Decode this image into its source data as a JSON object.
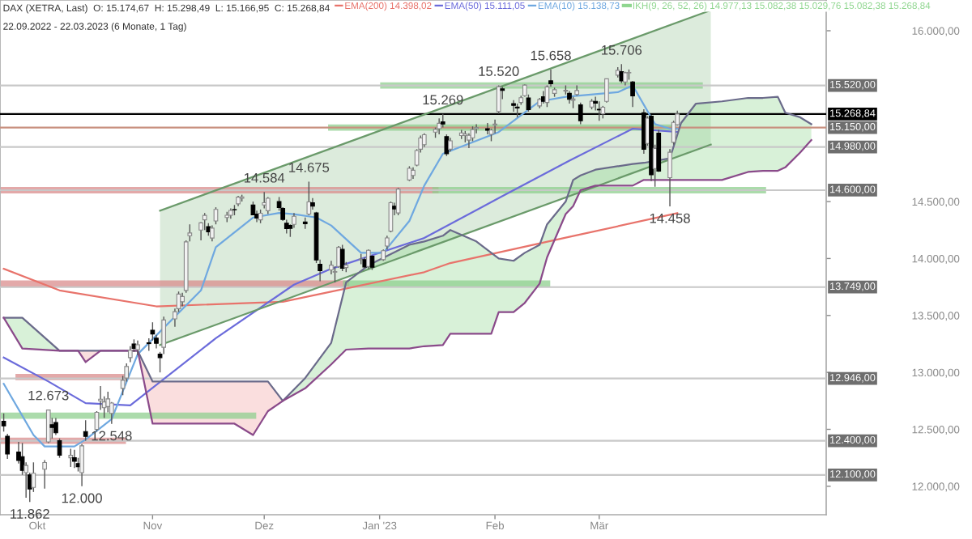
{
  "chart_data": {
    "type": "candlestick",
    "title": "DAX (XETRA, Last)  O: 15.174,67  H: 15.298,49  L: 15.166,95  C: 15.268,84",
    "subtitle": "22.09.2022 - 22.03.2023 (6 Monate, 1 Tag)",
    "x": [
      "2022-09-22",
      "2022-09-23",
      "2022-09-26",
      "2022-09-27",
      "2022-09-28",
      "2022-09-29",
      "2022-09-30",
      "2022-10-03",
      "2022-10-04",
      "2022-10-05",
      "2022-10-06",
      "2022-10-07",
      "2022-10-10",
      "2022-10-11",
      "2022-10-12",
      "2022-10-13",
      "2022-10-14",
      "2022-10-17",
      "2022-10-18",
      "2022-10-19",
      "2022-10-20",
      "2022-10-21",
      "2022-10-24",
      "2022-10-25",
      "2022-10-26",
      "2022-10-27",
      "2022-10-28",
      "2022-10-31",
      "2022-11-01",
      "2022-11-02",
      "2022-11-03",
      "2022-11-04",
      "2022-11-07",
      "2022-11-08",
      "2022-11-09",
      "2022-11-10",
      "2022-11-11",
      "2022-11-14",
      "2022-11-15",
      "2022-11-16",
      "2022-11-17",
      "2022-11-18",
      "2022-11-21",
      "2022-11-22",
      "2022-11-23",
      "2022-11-24",
      "2022-11-25",
      "2022-11-28",
      "2022-11-29",
      "2022-11-30",
      "2022-12-01",
      "2022-12-02",
      "2022-12-05",
      "2022-12-06",
      "2022-12-07",
      "2022-12-08",
      "2022-12-09",
      "2022-12-12",
      "2022-12-13",
      "2022-12-14",
      "2022-12-15",
      "2022-12-16",
      "2022-12-19",
      "2022-12-20",
      "2022-12-21",
      "2022-12-22",
      "2022-12-23",
      "2022-12-27",
      "2022-12-28",
      "2022-12-29",
      "2022-12-30",
      "2023-01-02",
      "2023-01-03",
      "2023-01-04",
      "2023-01-05",
      "2023-01-06",
      "2023-01-09",
      "2023-01-10",
      "2023-01-11",
      "2023-01-12",
      "2023-01-13",
      "2023-01-16",
      "2023-01-17",
      "2023-01-18",
      "2023-01-19",
      "2023-01-20",
      "2023-01-23",
      "2023-01-24",
      "2023-01-25",
      "2023-01-26",
      "2023-01-27",
      "2023-01-30",
      "2023-01-31",
      "2023-02-01",
      "2023-02-02",
      "2023-02-03",
      "2023-02-06",
      "2023-02-07",
      "2023-02-08",
      "2023-02-09",
      "2023-02-10",
      "2023-02-13",
      "2023-02-14",
      "2023-02-15",
      "2023-02-16",
      "2023-02-17",
      "2023-02-20",
      "2023-02-21",
      "2023-02-22",
      "2023-02-23",
      "2023-02-24",
      "2023-02-27",
      "2023-02-28",
      "2023-03-01",
      "2023-03-02",
      "2023-03-03",
      "2023-03-06",
      "2023-03-07",
      "2023-03-08",
      "2023-03-09",
      "2023-03-10",
      "2023-03-13",
      "2023-03-14",
      "2023-03-15",
      "2023-03-16",
      "2023-03-17",
      "2023-03-20",
      "2023-03-21",
      "2023-03-22"
    ],
    "ohlc": [
      [
        12570,
        12640,
        12480,
        12531
      ],
      [
        12440,
        12460,
        12240,
        12284
      ],
      [
        12300,
        12390,
        12200,
        12227
      ],
      [
        12260,
        12380,
        12100,
        12139
      ],
      [
        12120,
        12210,
        11900,
        12183
      ],
      [
        12100,
        12120,
        11862,
        11976
      ],
      [
        11990,
        12210,
        11950,
        12114
      ],
      [
        12150,
        12230,
        11980,
        12209
      ],
      [
        12390,
        12673,
        12380,
        12670
      ],
      [
        12540,
        12600,
        12420,
        12517
      ],
      [
        12560,
        12600,
        12450,
        12470
      ],
      [
        12400,
        12420,
        12250,
        12273
      ],
      [
        12250,
        12330,
        12170,
        12272
      ],
      [
        12250,
        12320,
        12160,
        12219
      ],
      [
        12200,
        12250,
        12130,
        12172
      ],
      [
        12120,
        12370,
        12000,
        12355
      ],
      [
        12480,
        12580,
        12400,
        12438
      ],
      [
        12500,
        12660,
        12480,
        12649
      ],
      [
        12750,
        12880,
        12670,
        12765
      ],
      [
        12690,
        12790,
        12600,
        12741
      ],
      [
        12700,
        12830,
        12650,
        12767
      ],
      [
        12640,
        12740,
        12548,
        12731
      ],
      [
        12860,
        12970,
        12800,
        12931
      ],
      [
        12950,
        13080,
        12920,
        13052
      ],
      [
        13130,
        13230,
        13090,
        13195
      ],
      [
        13250,
        13290,
        13180,
        13211
      ],
      [
        13200,
        13280,
        13150,
        13243
      ],
      [
        13260,
        13300,
        13190,
        13253
      ],
      [
        13370,
        13440,
        13280,
        13338
      ],
      [
        13300,
        13330,
        13210,
        13256
      ],
      [
        13160,
        13180,
        13000,
        13130
      ],
      [
        13220,
        13490,
        13160,
        13460
      ],
      [
        13470,
        13560,
        13400,
        13533
      ],
      [
        13560,
        13710,
        13530,
        13688
      ],
      [
        13620,
        13700,
        13580,
        13666
      ],
      [
        13720,
        14160,
        13700,
        14146
      ],
      [
        14200,
        14300,
        14150,
        14224
      ],
      [
        14250,
        14320,
        14160,
        14313
      ],
      [
        14340,
        14400,
        14250,
        14379
      ],
      [
        14280,
        14310,
        14200,
        14234
      ],
      [
        14180,
        14290,
        14150,
        14267
      ],
      [
        14330,
        14450,
        14300,
        14431
      ],
      [
        14360,
        14410,
        14320,
        14380
      ],
      [
        14380,
        14440,
        14350,
        14422
      ],
      [
        14430,
        14470,
        14380,
        14428
      ],
      [
        14480,
        14550,
        14460,
        14539
      ],
      [
        14530,
        14560,
        14500,
        14541
      ],
      [
        14470,
        14500,
        14380,
        14383
      ],
      [
        14390,
        14420,
        14320,
        14355
      ],
      [
        14340,
        14430,
        14310,
        14397
      ],
      [
        14470,
        14584,
        14440,
        14490
      ],
      [
        14420,
        14540,
        14390,
        14529
      ],
      [
        14500,
        14540,
        14420,
        14448
      ],
      [
        14440,
        14450,
        14330,
        14343
      ],
      [
        14310,
        14340,
        14220,
        14262
      ],
      [
        14290,
        14300,
        14190,
        14265
      ],
      [
        14300,
        14400,
        14270,
        14371
      ],
      [
        14320,
        14360,
        14260,
        14306
      ],
      [
        14390,
        14675,
        14380,
        14497
      ],
      [
        14490,
        14530,
        14430,
        14460
      ],
      [
        14400,
        14410,
        13960,
        13987
      ],
      [
        13950,
        13990,
        13800,
        13894
      ],
      [
        13900,
        13980,
        13860,
        13942
      ],
      [
        13880,
        13930,
        13790,
        13885
      ],
      [
        13930,
        14110,
        13920,
        14098
      ],
      [
        14080,
        14120,
        13890,
        13914
      ],
      [
        13920,
        13970,
        13880,
        13941
      ],
      [
        13990,
        14040,
        13950,
        13995
      ],
      [
        13990,
        14010,
        13920,
        13926
      ],
      [
        13930,
        14080,
        13910,
        14072
      ],
      [
        14020,
        14030,
        13900,
        13924
      ],
      [
        13990,
        14080,
        13980,
        14069
      ],
      [
        14110,
        14200,
        14080,
        14181
      ],
      [
        14240,
        14500,
        14230,
        14490
      ],
      [
        14460,
        14490,
        14380,
        14436
      ],
      [
        14400,
        14620,
        14380,
        14610
      ],
      [
        14690,
        14810,
        14680,
        14792
      ],
      [
        14730,
        14800,
        14700,
        14775
      ],
      [
        14820,
        14960,
        14810,
        14948
      ],
      [
        14960,
        15080,
        14930,
        15058
      ],
      [
        15000,
        15100,
        14980,
        15087
      ],
      [
        15110,
        15150,
        15060,
        15134
      ],
      [
        15140,
        15230,
        15090,
        15187
      ],
      [
        15200,
        15269,
        15150,
        15181
      ],
      [
        15070,
        15090,
        14900,
        14920
      ],
      [
        14960,
        15060,
        14940,
        15033
      ],
      [
        15080,
        15130,
        15050,
        15103
      ],
      [
        15080,
        15120,
        15020,
        15093
      ],
      [
        15040,
        15100,
        14970,
        15081
      ],
      [
        15060,
        15160,
        15030,
        15132
      ],
      [
        15140,
        15180,
        15100,
        15150
      ],
      [
        15140,
        15190,
        15090,
        15126
      ],
      [
        15090,
        15140,
        15030,
        15128
      ],
      [
        15170,
        15220,
        15100,
        15180
      ],
      [
        15290,
        15520,
        15270,
        15509
      ],
      [
        15490,
        15510,
        15400,
        15476
      ],
      [
        15360,
        15390,
        15290,
        15345
      ],
      [
        15330,
        15360,
        15240,
        15321
      ],
      [
        15370,
        15430,
        15350,
        15412
      ],
      [
        15430,
        15530,
        15420,
        15523
      ],
      [
        15410,
        15440,
        15290,
        15308
      ],
      [
        15340,
        15410,
        15320,
        15397
      ],
      [
        15420,
        15470,
        15360,
        15381
      ],
      [
        15370,
        15520,
        15330,
        15507
      ],
      [
        15560,
        15658,
        15510,
        15534
      ],
      [
        15450,
        15500,
        15420,
        15482
      ],
      [
        15470,
        15520,
        15440,
        15477
      ],
      [
        15450,
        15470,
        15360,
        15398
      ],
      [
        15390,
        15420,
        15320,
        15400
      ],
      [
        15440,
        15520,
        15430,
        15475
      ],
      [
        15350,
        15370,
        15180,
        15210
      ],
      [
        15330,
        15400,
        15310,
        15381
      ],
      [
        15380,
        15420,
        15300,
        15365
      ],
      [
        15310,
        15380,
        15210,
        15305
      ],
      [
        15270,
        15340,
        15230,
        15328
      ],
      [
        15380,
        15580,
        15370,
        15578
      ],
      [
        15610,
        15680,
        15590,
        15653
      ],
      [
        15640,
        15706,
        15540,
        15559
      ],
      [
        15550,
        15640,
        15520,
        15631
      ],
      [
        15630,
        15660,
        15570,
        15633
      ],
      [
        15550,
        15560,
        15330,
        15428
      ],
      [
        15280,
        15310,
        14920,
        14959
      ],
      [
        15010,
        15250,
        14990,
        15232
      ],
      [
        15250,
        15260,
        14680,
        14735
      ],
      [
        14790,
        15000,
        14630,
        14967
      ],
      [
        15100,
        15130,
        14760,
        14768
      ],
      [
        14710,
        14960,
        14458,
        14933
      ],
      [
        15020,
        15210,
        15000,
        15195
      ],
      [
        15174.67,
        15298.49,
        15166.95,
        15268.84
      ]
    ],
    "series": [
      {
        "type": "line",
        "name": "EMA(200) 14.398,02",
        "color": "#e8736b",
        "x": [
          "2022-09-22",
          "2022-10-07",
          "2022-11-02",
          "2022-12-06",
          "2023-01-13",
          "2023-01-20",
          "2023-02-21",
          "2023-03-22"
        ],
        "values": [
          13910,
          13720,
          13580,
          13620,
          13880,
          13960,
          14190,
          14398
        ]
      },
      {
        "type": "line",
        "name": "EMA(50) 15.111,05",
        "color": "#6b6bdb",
        "x": [
          "2022-09-22",
          "2022-10-04",
          "2022-10-14",
          "2022-10-26",
          "2022-11-18",
          "2022-12-09",
          "2022-12-19",
          "2023-01-13",
          "2023-02-02",
          "2023-02-21",
          "2023-03-10",
          "2023-03-22"
        ],
        "values": [
          13130,
          12920,
          12730,
          12710,
          13300,
          13770,
          13910,
          14180,
          14530,
          14860,
          15140,
          15111
        ]
      },
      {
        "type": "line",
        "name": "EMA(10) 15.138,73",
        "color": "#6fa8e0",
        "x": [
          "2022-09-22",
          "2022-09-30",
          "2022-10-03",
          "2022-10-11",
          "2022-10-14",
          "2022-10-21",
          "2022-10-28",
          "2022-11-14",
          "2022-11-18",
          "2022-11-28",
          "2022-12-05",
          "2022-12-09",
          "2022-12-15",
          "2022-12-19",
          "2022-12-27",
          "2023-01-02",
          "2023-01-09",
          "2023-01-13",
          "2023-01-18",
          "2023-02-02",
          "2023-02-13",
          "2023-02-20",
          "2023-03-06",
          "2023-03-10",
          "2023-03-16",
          "2023-03-20",
          "2023-03-22"
        ],
        "values": [
          12900,
          12450,
          12350,
          12350,
          12410,
          12590,
          13160,
          13720,
          14100,
          14360,
          14400,
          14390,
          14360,
          14290,
          14050,
          14050,
          14330,
          14640,
          14920,
          15110,
          15380,
          15420,
          15460,
          15520,
          15180,
          15140,
          15139
        ]
      },
      {
        "type": "line",
        "color": "#9cc79c",
        "x": [
          "2022-11-03",
          "2023-03-31"
        ],
        "values": [
          null,
          null
        ],
        "lower": [
          13240,
          15000
        ],
        "upper": [
          14420,
          16180
        ]
      },
      {
        "type": "line",
        "color": "#6a9a6a",
        "x": [
          "2022-11-03",
          "2023-03-31"
        ],
        "values": [
          14420,
          16180
        ]
      },
      {
        "type": "line",
        "color": "#6a9a6a",
        "x": [
          "2022-11-03",
          "2023-03-31"
        ],
        "values": [
          13240,
          15000
        ]
      },
      {
        "type": "line",
        "color": "#6a6a8a",
        "x": [
          "2022-09-22",
          "2022-09-27",
          "2022-10-07",
          "2022-10-12",
          "2022-10-14",
          "2022-10-18",
          "2022-10-28",
          "2022-11-01",
          "2022-11-23",
          "2022-11-28",
          "2022-12-02",
          "2022-12-06",
          "2022-12-12",
          "2022-12-19",
          "2022-12-23",
          "2022-12-29",
          "2023-01-09",
          "2023-01-13",
          "2023-01-18",
          "2023-01-20",
          "2023-01-27",
          "2023-01-31",
          "2023-02-02",
          "2023-02-06",
          "2023-02-09",
          "2023-02-13",
          "2023-02-15",
          "2023-02-20",
          "2023-02-22",
          "2023-02-24",
          "2023-02-28",
          "2023-03-10",
          "2023-03-13",
          "2023-03-20",
          "2023-03-23",
          "2023-03-27",
          "2023-04-03",
          "2023-04-10",
          "2023-04-14",
          "2023-04-18",
          "2023-04-20",
          "2023-04-24",
          "2023-04-27"
        ],
        "values": [
          13480,
          13480,
          13190,
          13190,
          13190,
          13190,
          13190,
          12920,
          12920,
          12920,
          12920,
          12750,
          12950,
          13260,
          13790,
          13940,
          14120,
          14150,
          14200,
          14250,
          14150,
          14050,
          14000,
          13980,
          14050,
          14120,
          14300,
          14500,
          14690,
          14730,
          14780,
          14830,
          14840,
          14880,
          15190,
          15360,
          15380,
          15410,
          15410,
          15420,
          15280,
          15240,
          15180
        ]
      },
      {
        "type": "line",
        "color": "#8a4a8a",
        "x": [
          "2022-09-22",
          "2022-09-27",
          "2022-10-07",
          "2022-10-12",
          "2022-10-14",
          "2022-10-18",
          "2022-10-28",
          "2022-11-01",
          "2022-11-23",
          "2022-11-28",
          "2022-12-02",
          "2022-12-06",
          "2022-12-12",
          "2022-12-19",
          "2022-12-23",
          "2022-12-29",
          "2023-01-09",
          "2023-01-13",
          "2023-01-18",
          "2023-01-20",
          "2023-01-27",
          "2023-01-31",
          "2023-02-02",
          "2023-02-06",
          "2023-02-09",
          "2023-02-13",
          "2023-02-15",
          "2023-02-20",
          "2023-02-22",
          "2023-02-24",
          "2023-02-28",
          "2023-03-10",
          "2023-03-13",
          "2023-03-20",
          "2023-03-23",
          "2023-03-27",
          "2023-04-03",
          "2023-04-10",
          "2023-04-14",
          "2023-04-18",
          "2023-04-20",
          "2023-04-24",
          "2023-04-27"
        ],
        "values": [
          13480,
          13210,
          13190,
          13190,
          13090,
          13190,
          13190,
          12550,
          12550,
          12450,
          12660,
          12750,
          12860,
          13070,
          13200,
          13210,
          13210,
          13230,
          13240,
          13340,
          13340,
          13340,
          13530,
          13530,
          13610,
          13780,
          14010,
          14390,
          14460,
          14600,
          14640,
          14640,
          14690,
          14690,
          14690,
          14690,
          14690,
          14760,
          14770,
          14770,
          14800,
          14930,
          15040
        ]
      },
      {
        "type": "line",
        "name": "IKH(9, 26, 52, 26) 14.977,13 15.082,38 15.029,76 15.082,38 15.268,84",
        "color": "#8fd68f",
        "x": [
          "2022-09-22",
          "2022-09-27",
          "2022-10-07",
          "2022-10-12",
          "2022-10-18",
          "2022-10-28",
          "2022-12-06",
          "2022-12-12",
          "2022-12-19",
          "2022-12-23",
          "2022-12-29",
          "2023-01-09",
          "2023-01-13",
          "2023-01-18",
          "2023-01-20",
          "2023-01-27",
          "2023-01-31",
          "2023-02-02",
          "2023-02-06",
          "2023-02-09",
          "2023-02-13",
          "2023-02-15",
          "2023-02-20",
          "2023-02-22",
          "2023-02-24",
          "2023-02-28",
          "2023-03-10",
          "2023-03-13",
          "2023-03-20",
          "2023-03-23",
          "2023-03-27",
          "2023-04-03",
          "2023-04-10",
          "2023-04-14",
          "2023-04-18",
          "2023-04-20",
          "2023-04-24",
          "2023-04-27"
        ],
        "values": [
          null,
          null,
          null,
          null,
          null,
          null,
          null,
          null,
          null,
          null,
          null,
          null,
          null,
          null,
          null,
          null,
          null,
          null,
          null,
          null,
          null,
          null,
          null,
          null,
          null,
          null,
          null,
          null,
          null,
          null,
          null,
          null,
          null,
          null,
          null,
          null,
          null,
          null
        ],
        "lower": [
          13483,
          13214,
          13186,
          13186,
          13186,
          13186,
          12748,
          12860,
          13073,
          13200,
          13214,
          13214,
          13228,
          13243,
          13341,
          13341,
          13341,
          13525,
          13525,
          13610,
          13780,
          14006,
          14388,
          14459,
          14600,
          14642,
          14642,
          14685,
          14685,
          14685,
          14685,
          14685,
          14755,
          14770,
          14770,
          14800,
          14925,
          15038
        ],
        "upper": [
          13483,
          13483,
          13186,
          13186,
          13186,
          13186,
          12748,
          12950,
          13257,
          13794,
          13935,
          14119,
          14147,
          14200,
          14246,
          14147,
          14050,
          14000,
          13977,
          14050,
          14119,
          14300,
          14501,
          14685,
          14730,
          14784,
          14826,
          14840,
          14883,
          15194,
          15364,
          15378,
          15406,
          15406,
          15420,
          15279,
          15236,
          15180
        ]
      },
      {
        "type": "line",
        "color": "#f0a0a0",
        "x": [
          "2022-10-12",
          "2022-10-14",
          "2022-10-18",
          "2022-10-28",
          "2022-11-01",
          "2022-11-23",
          "2022-11-28",
          "2022-12-02",
          "2022-12-06"
        ],
        "values": [
          null,
          null,
          null,
          null,
          null,
          null,
          null,
          null,
          null
        ],
        "lower": [
          13186,
          13087,
          13186,
          13186,
          12550,
          12550,
          12451,
          12663,
          12748
        ],
        "upper": [
          13186,
          13186,
          13186,
          13186,
          12917,
          12917,
          12917,
          12917,
          12748
        ]
      },
      {
        "type": "line",
        "color": "#8fcf8f",
        "x": [
          "2023-01-02",
          "2023-03-28"
        ],
        "values": [
          15520,
          15520
        ]
      },
      {
        "type": "line",
        "color": "#8fcf8f",
        "x": [
          "2022-12-19",
          "2023-03-20"
        ],
        "values": [
          15150,
          15150
        ]
      },
      {
        "type": "line",
        "color": "#d98c8c",
        "x": [
          "2022-09-22",
          "2023-01-16"
        ],
        "values": [
          14600,
          14600
        ]
      },
      {
        "type": "line",
        "color": "#8fcf8f",
        "x": [
          "2023-01-16",
          "2023-04-14"
        ],
        "values": [
          14600,
          14600
        ]
      },
      {
        "type": "line",
        "color": "#d98c8c",
        "x": [
          "2022-09-22",
          "2022-12-23"
        ],
        "values": [
          13780,
          13780
        ]
      },
      {
        "type": "line",
        "color": "#8fcf8f",
        "x": [
          "2022-12-23",
          "2023-02-15"
        ],
        "values": [
          13780,
          13780
        ]
      },
      {
        "type": "line",
        "color": "#d98c8c",
        "x": [
          "2022-09-26",
          "2022-10-24"
        ],
        "values": [
          12960,
          12960
        ]
      },
      {
        "type": "line",
        "color": "#8fcf8f",
        "x": [
          "2022-09-22",
          "2022-11-28"
        ],
        "values": [
          12620,
          12620
        ]
      },
      {
        "type": "line",
        "color": "#d98c8c",
        "x": [
          "2022-09-22",
          "2022-10-24"
        ],
        "values": [
          12400,
          12400
        ]
      }
    ],
    "xlim": [
      "2022-09-21",
      "2023-05-01"
    ],
    "xticks": [
      {
        "value": "2022-10-01",
        "label": "Okt"
      },
      {
        "value": "2022-11-01",
        "label": "Nov"
      },
      {
        "value": "2022-12-01",
        "label": "Dez"
      },
      {
        "value": "2023-01-01",
        "label": "Jan '23"
      },
      {
        "value": "2023-02-01",
        "label": "Feb"
      },
      {
        "value": "2023-03-01",
        "label": "Mär"
      }
    ],
    "ylim": [
      11750,
      16270
    ],
    "yticks": [
      {
        "value": 12000,
        "label": "12.000,00"
      },
      {
        "value": 12500,
        "label": "12.500,00"
      },
      {
        "value": 13000,
        "label": "13.000,00"
      },
      {
        "value": 13500,
        "label": "13.500,00"
      },
      {
        "value": 14000,
        "label": "14.000,00"
      },
      {
        "value": 14500,
        "label": "14.500,00"
      },
      {
        "value": 16000,
        "label": "16.000,00"
      }
    ],
    "ref_lines": [
      {
        "axis": "y",
        "value": 15520,
        "label": "15.520,00",
        "color": "#c8c8c8"
      },
      {
        "axis": "y",
        "value": 15268.84,
        "label": "15.268,84",
        "color": "#000000"
      },
      {
        "axis": "y",
        "value": 15150,
        "label": "15.150,00",
        "color": "#c8907f"
      },
      {
        "axis": "y",
        "value": 14980,
        "label": "14.980,00",
        "color": "#c8c8c8"
      },
      {
        "axis": "y",
        "value": 14600,
        "label": "14.600,00",
        "color": "#c8c8c8"
      },
      {
        "axis": "y",
        "value": 13749,
        "label": "13.749,00",
        "color": "#c8c8c8"
      },
      {
        "axis": "y",
        "value": 12946,
        "label": "12.946,00",
        "color": "#c8c8c8"
      },
      {
        "axis": "y",
        "value": 12400,
        "label": "12.400,00",
        "color": "#c8c8c8"
      },
      {
        "axis": "y",
        "value": 12100,
        "label": "12.100,00",
        "color": "#c8c8c8"
      }
    ],
    "annotations": [
      {
        "text": "14.584",
        "x": "2022-12-01",
        "y": 14584
      },
      {
        "text": "14.675",
        "x": "2022-12-13",
        "y": 14675
      },
      {
        "text": "15.269",
        "x": "2023-01-18",
        "y": 15269
      },
      {
        "text": "15.520",
        "x": "2023-02-02",
        "y": 15520
      },
      {
        "text": "15.658",
        "x": "2023-02-16",
        "y": 15658
      },
      {
        "text": "15.706",
        "x": "2023-03-07",
        "y": 15706
      },
      {
        "text": "14.458",
        "x": "2023-03-20",
        "y": 14458
      },
      {
        "text": "12.673",
        "x": "2022-10-04",
        "y": 12673
      },
      {
        "text": "12.548",
        "x": "2022-10-21",
        "y": 12548
      },
      {
        "text": "12.000",
        "x": "2022-10-13",
        "y": 12000
      },
      {
        "text": "11.862",
        "x": "2022-09-29",
        "y": 11862
      }
    ],
    "legend": "top",
    "grid": false
  }
}
